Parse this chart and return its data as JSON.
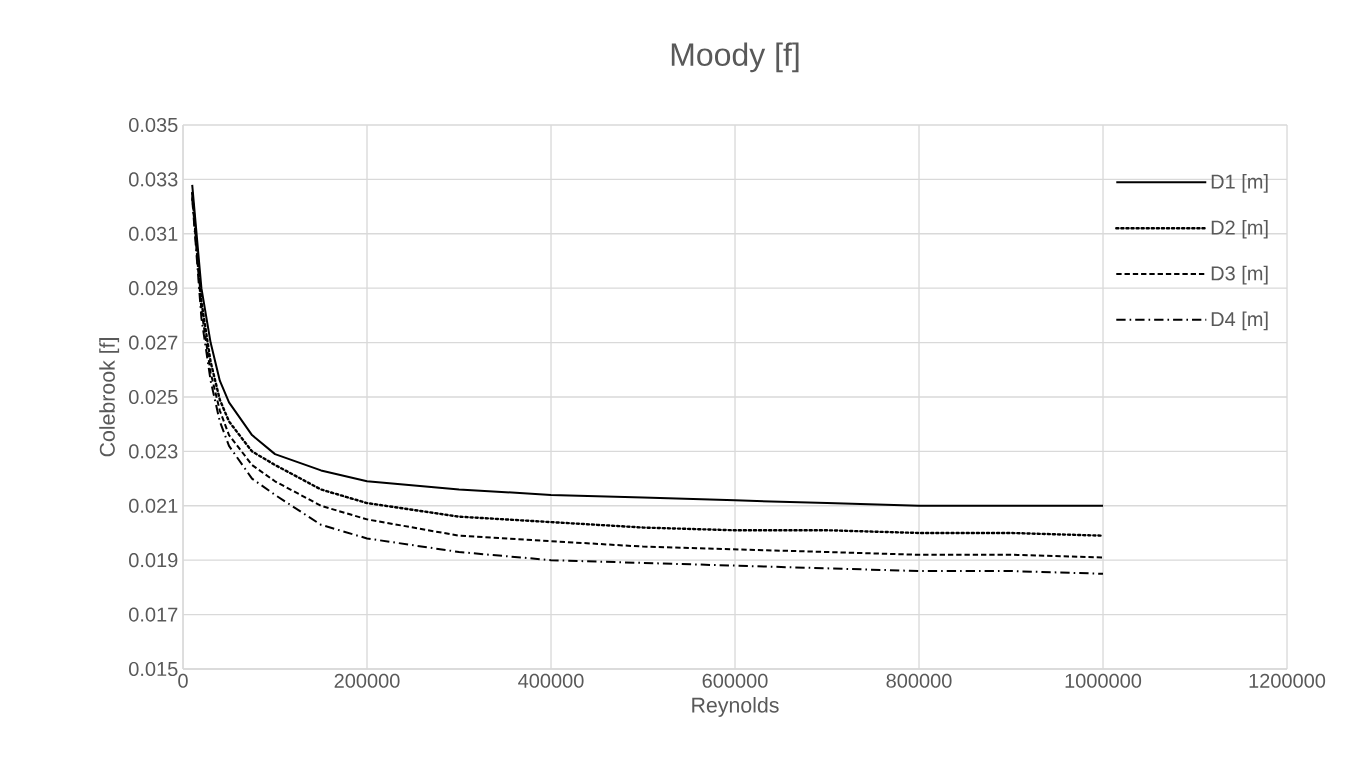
{
  "chart_data": {
    "type": "line",
    "title": "Moody [f]",
    "xlabel": "Reynolds",
    "ylabel": "Colebrook [f]",
    "x": [
      10000,
      20000,
      30000,
      40000,
      50000,
      75000,
      100000,
      150000,
      200000,
      300000,
      400000,
      500000,
      600000,
      700000,
      800000,
      900000,
      1000000
    ],
    "series": [
      {
        "name": "D1 [m]",
        "color": "#000000",
        "line_style": "solid",
        "values": [
          0.0328,
          0.029,
          0.027,
          0.0256,
          0.0248,
          0.0236,
          0.0229,
          0.0223,
          0.0219,
          0.0216,
          0.0214,
          0.0213,
          0.0212,
          0.0211,
          0.021,
          0.021,
          0.021
        ]
      },
      {
        "name": "D2 [m]",
        "color": "#000000",
        "line_style": "dotted",
        "values": [
          0.0325,
          0.0285,
          0.0263,
          0.0249,
          0.0241,
          0.023,
          0.0225,
          0.0216,
          0.0211,
          0.0206,
          0.0204,
          0.0202,
          0.0201,
          0.0201,
          0.02,
          0.02,
          0.0199
        ]
      },
      {
        "name": "D3 [m]",
        "color": "#000000",
        "line_style": "dashed",
        "values": [
          0.0324,
          0.0282,
          0.0259,
          0.0245,
          0.0236,
          0.0225,
          0.0219,
          0.021,
          0.0205,
          0.0199,
          0.0197,
          0.0195,
          0.0194,
          0.0193,
          0.0192,
          0.0192,
          0.0191
        ]
      },
      {
        "name": "D4 [m]",
        "color": "#000000",
        "line_style": "dashdot",
        "values": [
          0.0323,
          0.0279,
          0.0256,
          0.0241,
          0.0232,
          0.022,
          0.0214,
          0.0203,
          0.0198,
          0.0193,
          0.019,
          0.0189,
          0.0188,
          0.0187,
          0.0186,
          0.0186,
          0.0185
        ]
      }
    ],
    "xlim": [
      0,
      1200000
    ],
    "ylim": [
      0.015,
      0.035
    ],
    "xticks": [
      0,
      200000,
      400000,
      600000,
      800000,
      1000000,
      1200000
    ],
    "yticks": [
      0.015,
      0.017,
      0.019,
      0.021,
      0.023,
      0.025,
      0.027,
      0.029,
      0.031,
      0.033,
      0.035
    ],
    "grid": true,
    "legend": "top right",
    "marker": "none"
  }
}
